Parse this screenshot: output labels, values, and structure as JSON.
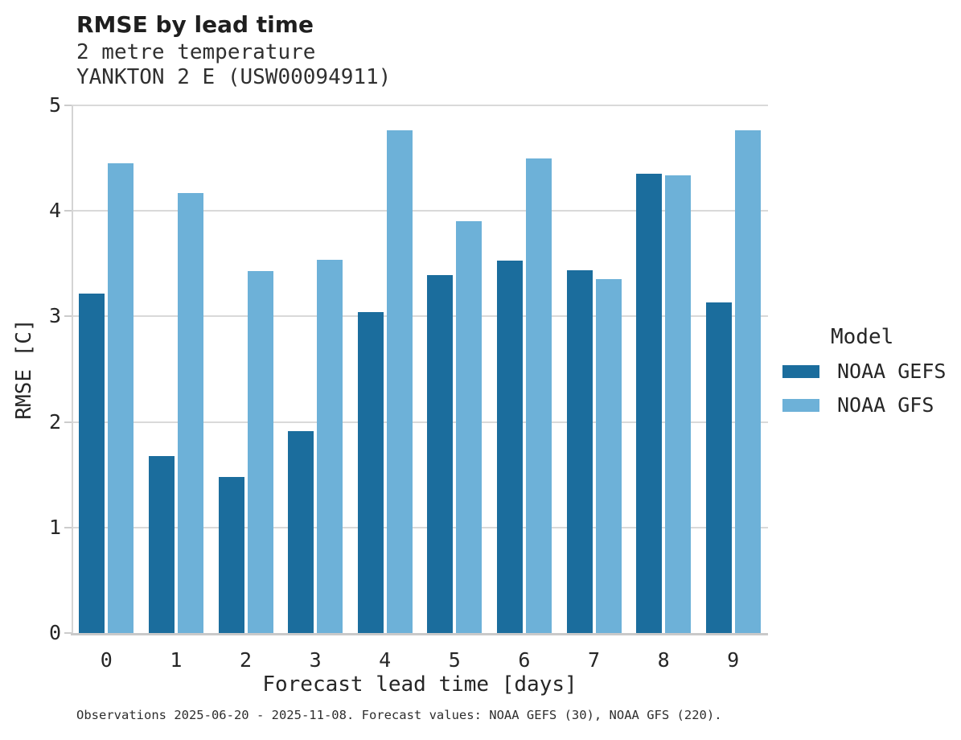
{
  "header": {
    "title": "RMSE by lead time",
    "subtitle_line1": "2 metre temperature",
    "subtitle_line2": "YANKTON 2 E (USW00094911)"
  },
  "chart_data": {
    "type": "bar",
    "title": "RMSE by lead time",
    "subtitle_lines": [
      "2 metre temperature",
      "YANKTON 2 E (USW00094911)"
    ],
    "categories": [
      "0",
      "1",
      "2",
      "3",
      "4",
      "5",
      "6",
      "7",
      "8",
      "9"
    ],
    "series": [
      {
        "name": "NOAA GEFS",
        "color": "#1b6d9d",
        "values": [
          3.22,
          1.68,
          1.48,
          1.91,
          3.04,
          3.39,
          3.53,
          3.44,
          4.35,
          3.13
        ]
      },
      {
        "name": "NOAA GFS",
        "color": "#6db1d8",
        "values": [
          4.45,
          4.17,
          3.43,
          3.54,
          4.76,
          3.9,
          4.5,
          3.35,
          4.34,
          4.76
        ]
      }
    ],
    "xlabel": "Forecast lead time [days]",
    "ylabel": "RMSE [C]",
    "ylim": [
      0,
      5
    ],
    "yticks": [
      0,
      1,
      2,
      3,
      4,
      5
    ],
    "grid": true,
    "legend": {
      "title": "Model",
      "position": "right"
    }
  },
  "style": {
    "gridline_color": "#d9d9d9",
    "axis_color": "#c9c9c9",
    "text_color": "#262626"
  },
  "caption": "Observations 2025-06-20 - 2025-11-08. Forecast values: NOAA GEFS (30), NOAA GFS (220)."
}
